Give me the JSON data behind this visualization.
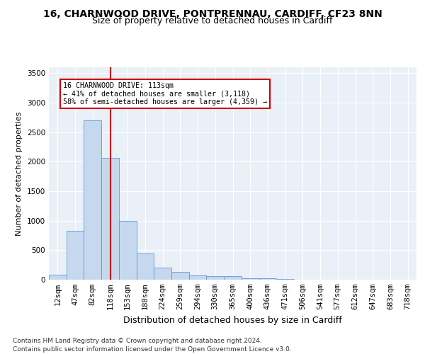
{
  "title1": "16, CHARNWOOD DRIVE, PONTPRENNAU, CARDIFF, CF23 8NN",
  "title2": "Size of property relative to detached houses in Cardiff",
  "xlabel": "Distribution of detached houses by size in Cardiff",
  "ylabel": "Number of detached properties",
  "categories": [
    "12sqm",
    "47sqm",
    "82sqm",
    "118sqm",
    "153sqm",
    "188sqm",
    "224sqm",
    "259sqm",
    "294sqm",
    "330sqm",
    "365sqm",
    "400sqm",
    "436sqm",
    "471sqm",
    "506sqm",
    "541sqm",
    "577sqm",
    "612sqm",
    "647sqm",
    "683sqm",
    "718sqm"
  ],
  "values": [
    80,
    830,
    2700,
    2060,
    1000,
    450,
    210,
    135,
    78,
    60,
    55,
    30,
    22,
    10,
    5,
    3,
    1,
    0,
    0,
    0,
    0
  ],
  "bar_color": "#c5d8ee",
  "bar_edge_color": "#5b9bd5",
  "vline_color": "#cc0000",
  "annotation_text": "16 CHARNWOOD DRIVE: 113sqm\n← 41% of detached houses are smaller (3,118)\n58% of semi-detached houses are larger (4,359) →",
  "annotation_box_color": "#ffffff",
  "annotation_box_edge": "#cc0000",
  "ylim": [
    0,
    3600
  ],
  "yticks": [
    0,
    500,
    1000,
    1500,
    2000,
    2500,
    3000,
    3500
  ],
  "footer": "Contains HM Land Registry data © Crown copyright and database right 2024.\nContains public sector information licensed under the Open Government Licence v3.0.",
  "bg_color": "#eaf0f8",
  "grid_color": "#ffffff",
  "title1_fontsize": 10,
  "title2_fontsize": 9,
  "xlabel_fontsize": 9,
  "ylabel_fontsize": 8,
  "tick_fontsize": 7.5,
  "footer_fontsize": 6.5
}
